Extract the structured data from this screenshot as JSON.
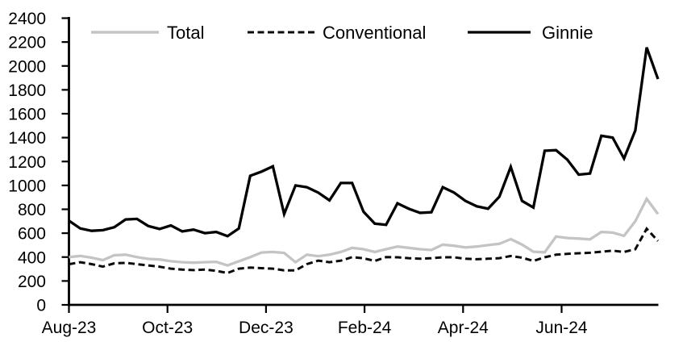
{
  "chart_data": {
    "type": "line",
    "title": "",
    "grid": false,
    "legend_position": "top",
    "x_axis": {
      "tick_labels": [
        "Aug-23",
        "Oct-23",
        "Dec-23",
        "Feb-24",
        "Apr-24",
        "Jun-24"
      ],
      "frequency": "weekly"
    },
    "y_axis": {
      "min": 0,
      "max": 2400,
      "tick_step": 200,
      "tick_labels": [
        "0",
        "200",
        "400",
        "600",
        "800",
        "1000",
        "1200",
        "1400",
        "1600",
        "1800",
        "2000",
        "2200",
        "2400"
      ]
    },
    "series": [
      {
        "name": "Total",
        "color": "#c4c4c4",
        "line_style": "solid",
        "dash": "none",
        "values": [
          400,
          410,
          395,
          375,
          415,
          420,
          400,
          385,
          380,
          365,
          357,
          353,
          357,
          360,
          330,
          365,
          400,
          438,
          443,
          435,
          357,
          420,
          408,
          420,
          443,
          477,
          466,
          443,
          466,
          488,
          477,
          466,
          459,
          504,
          495,
          481,
          488,
          500,
          511,
          550,
          505,
          445,
          440,
          572,
          560,
          555,
          548,
          610,
          605,
          578,
          700,
          888,
          760
        ]
      },
      {
        "name": "Conventional",
        "color": "#0a0a0a",
        "line_style": "dashed",
        "dash": "8 4.5",
        "values": [
          340,
          357,
          341,
          320,
          348,
          352,
          341,
          330,
          319,
          303,
          296,
          291,
          296,
          285,
          267,
          303,
          312,
          307,
          303,
          289,
          289,
          341,
          370,
          357,
          370,
          400,
          390,
          368,
          400,
          398,
          391,
          386,
          391,
          398,
          398,
          386,
          382,
          386,
          391,
          409,
          395,
          368,
          398,
          420,
          427,
          432,
          436,
          445,
          454,
          443,
          466,
          637,
          535
        ]
      },
      {
        "name": "Ginnie",
        "color": "#000000",
        "line_style": "solid",
        "dash": "none",
        "values": [
          705,
          640,
          620,
          625,
          650,
          715,
          720,
          660,
          635,
          665,
          615,
          630,
          600,
          610,
          575,
          640,
          1080,
          1115,
          1160,
          760,
          1000,
          985,
          940,
          875,
          1020,
          1020,
          780,
          680,
          670,
          850,
          805,
          770,
          775,
          985,
          940,
          870,
          825,
          805,
          905,
          1155,
          870,
          815,
          1290,
          1295,
          1215,
          1090,
          1100,
          1415,
          1400,
          1225,
          1460,
          2155,
          1890
        ]
      }
    ]
  }
}
